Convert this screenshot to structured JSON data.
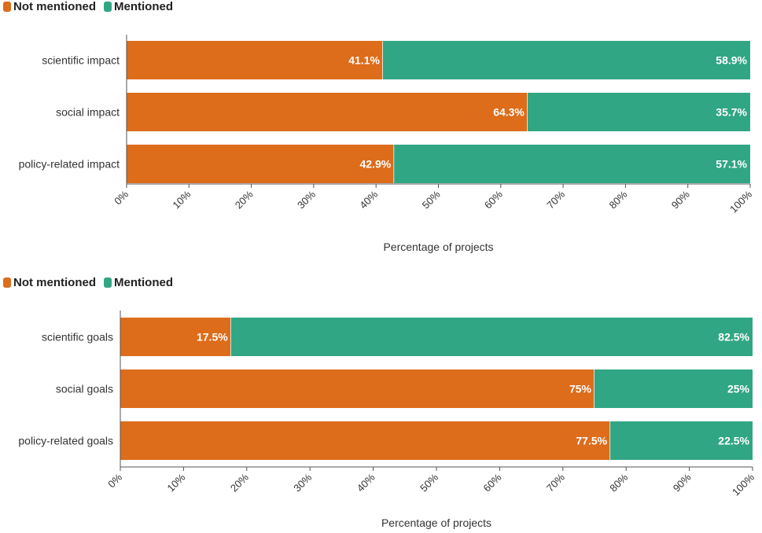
{
  "colors": {
    "not_mentioned": "#dd6c1b",
    "mentioned": "#31a684",
    "axis": "#555555"
  },
  "chart_data": [
    {
      "type": "bar",
      "orientation": "horizontal",
      "stacked": true,
      "categories": [
        "scientific impact",
        "social impact",
        "policy-related impact"
      ],
      "series": [
        {
          "name": "Not mentioned",
          "values": [
            41.1,
            64.3,
            42.9
          ],
          "labels": [
            "41.1%",
            "64.3%",
            "42.9%"
          ]
        },
        {
          "name": "Mentioned",
          "values": [
            58.9,
            35.7,
            57.1
          ],
          "labels": [
            "58.9%",
            "35.7%",
            "57.1%"
          ]
        }
      ],
      "xlabel": "Percentage of projects",
      "xlim": [
        0,
        100
      ],
      "xticks": [
        "0%",
        "10%",
        "20%",
        "30%",
        "40%",
        "50%",
        "60%",
        "70%",
        "80%",
        "90%",
        "100%"
      ],
      "legend": [
        "Not mentioned",
        "Mentioned"
      ],
      "legend_position": "top-left"
    },
    {
      "type": "bar",
      "orientation": "horizontal",
      "stacked": true,
      "categories": [
        "scientific goals",
        "social goals",
        "policy-related goals"
      ],
      "series": [
        {
          "name": "Not mentioned",
          "values": [
            17.5,
            75,
            77.5
          ],
          "labels": [
            "17.5%",
            "75%",
            "77.5%"
          ]
        },
        {
          "name": "Mentioned",
          "values": [
            82.5,
            25,
            22.5
          ],
          "labels": [
            "82.5%",
            "25%",
            "22.5%"
          ]
        }
      ],
      "xlabel": "Percentage of projects",
      "xlim": [
        0,
        100
      ],
      "xticks": [
        "0%",
        "10%",
        "20%",
        "30%",
        "40%",
        "50%",
        "60%",
        "70%",
        "80%",
        "90%",
        "100%"
      ],
      "legend": [
        "Not mentioned",
        "Mentioned"
      ],
      "legend_position": "top-left"
    }
  ]
}
